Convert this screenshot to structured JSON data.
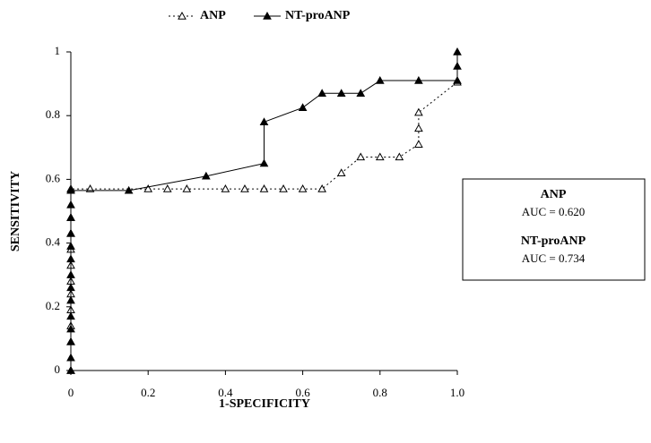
{
  "chart_data": {
    "type": "line",
    "xlabel": "1-SPECIFICITY",
    "ylabel": "SENSITIVITY",
    "xlim": [
      0,
      1
    ],
    "ylim": [
      0,
      1
    ],
    "xticks": [
      0,
      0.2,
      0.4,
      0.6,
      0.8,
      {
        "value": 1,
        "label": "1.0"
      }
    ],
    "yticks": [
      0,
      0.2,
      0.4,
      0.6,
      0.8,
      1
    ],
    "series": [
      {
        "name": "ANP",
        "color": "#000000",
        "line_style": "dotted",
        "marker": "open-triangle",
        "x": [
          0,
          0,
          0,
          0,
          0,
          0,
          0,
          0,
          0,
          0,
          0,
          0.05,
          0.2,
          0.25,
          0.3,
          0.4,
          0.45,
          0.5,
          0.55,
          0.6,
          0.65,
          0.7,
          0.75,
          0.8,
          0.85,
          0.9,
          0.9,
          0.9,
          1
        ],
        "values": [
          0,
          0.09,
          0.14,
          0.19,
          0.24,
          0.28,
          0.33,
          0.38,
          0.43,
          0.48,
          0.57,
          0.57,
          0.57,
          0.57,
          0.57,
          0.57,
          0.57,
          0.57,
          0.57,
          0.57,
          0.57,
          0.62,
          0.67,
          0.67,
          0.67,
          0.71,
          0.76,
          0.81,
          0.905
        ]
      },
      {
        "name": "NT-proANP",
        "color": "#000000",
        "line_style": "solid",
        "marker": "filled-triangle",
        "x": [
          0,
          0,
          0,
          0,
          0,
          0,
          0,
          0,
          0,
          0,
          0,
          0,
          0,
          0,
          0.15,
          0.35,
          0.5,
          0.5,
          0.6,
          0.65,
          0.7,
          0.75,
          0.8,
          0.9,
          1,
          1,
          1
        ],
        "values": [
          0,
          0.04,
          0.09,
          0.13,
          0.17,
          0.22,
          0.26,
          0.3,
          0.35,
          0.39,
          0.43,
          0.48,
          0.52,
          0.565,
          0.565,
          0.61,
          0.65,
          0.78,
          0.825,
          0.87,
          0.87,
          0.87,
          0.91,
          0.91,
          0.91,
          0.955,
          1
        ]
      }
    ],
    "annotations": [
      {
        "title": "ANP",
        "text": "AUC = 0.620"
      },
      {
        "title": "NT-proANP",
        "text": "AUC = 0.734"
      }
    ]
  }
}
